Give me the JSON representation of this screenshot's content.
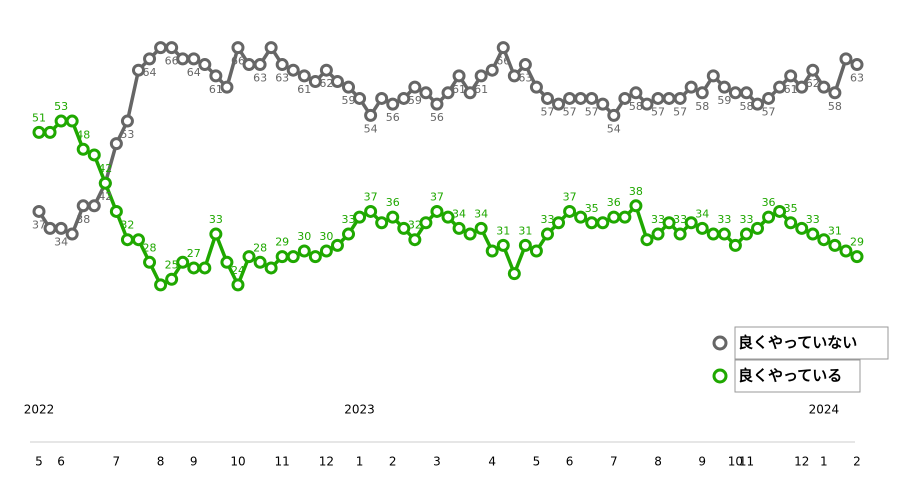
{
  "chart_data": {
    "type": "line",
    "categories": [
      "5",
      null,
      "6",
      null,
      null,
      null,
      null,
      "7",
      null,
      null,
      null,
      "8",
      null,
      null,
      "9",
      null,
      null,
      null,
      "10",
      null,
      null,
      null,
      "11",
      null,
      null,
      null,
      "12",
      null,
      null,
      "1",
      null,
      null,
      "2",
      null,
      null,
      null,
      "3",
      null,
      null,
      null,
      null,
      "4",
      null,
      null,
      null,
      "5",
      null,
      null,
      "6",
      null,
      null,
      null,
      "7",
      null,
      null,
      null,
      "8",
      null,
      null,
      null,
      "9",
      null,
      null,
      "10",
      "11",
      null,
      null,
      null,
      null,
      "12",
      null,
      "1",
      null,
      null,
      "2"
    ],
    "years": [
      "2022",
      null,
      null,
      null,
      null,
      null,
      null,
      null,
      null,
      null,
      null,
      null,
      null,
      null,
      null,
      null,
      null,
      null,
      null,
      null,
      null,
      null,
      null,
      null,
      null,
      null,
      null,
      null,
      null,
      "2023",
      null,
      null,
      null,
      null,
      null,
      null,
      null,
      null,
      null,
      null,
      null,
      null,
      null,
      null,
      null,
      null,
      null,
      null,
      null,
      null,
      null,
      null,
      null,
      null,
      null,
      null,
      null,
      null,
      null,
      null,
      null,
      null,
      null,
      null,
      null,
      null,
      null,
      null,
      null,
      null,
      null,
      "2024",
      null,
      null,
      null
    ],
    "series": [
      {
        "name": "良くやっていない",
        "color": "#666666",
        "values": [
          37,
          34,
          34,
          33,
          38,
          38,
          42,
          49,
          53,
          62,
          64,
          66,
          66,
          64,
          64,
          63,
          61,
          59,
          66,
          63,
          63,
          66,
          63,
          62,
          61,
          60,
          62,
          60,
          59,
          57,
          54,
          57,
          56,
          57,
          59,
          58,
          56,
          58,
          61,
          58,
          61,
          62,
          66,
          61,
          63,
          59,
          57,
          56,
          57,
          57,
          57,
          56,
          54,
          57,
          58,
          56,
          57,
          57,
          57,
          59,
          58,
          61,
          59,
          58,
          58,
          56,
          57,
          59,
          61,
          59,
          62,
          59,
          58,
          64,
          63
        ]
      },
      {
        "name": "良くやっている",
        "color": "#1fa800",
        "values": [
          51,
          51,
          53,
          53,
          48,
          47,
          42,
          37,
          32,
          32,
          28,
          24,
          25,
          28,
          27,
          27,
          33,
          28,
          24,
          29,
          28,
          27,
          29,
          29,
          30,
          29,
          30,
          31,
          33,
          36,
          37,
          35,
          36,
          34,
          32,
          35,
          37,
          36,
          34,
          33,
          34,
          30,
          31,
          26,
          31,
          30,
          33,
          35,
          37,
          36,
          35,
          35,
          36,
          36,
          38,
          32,
          33,
          35,
          33,
          35,
          34,
          33,
          33,
          31,
          33,
          34,
          36,
          37,
          35,
          34,
          33,
          32,
          31,
          30,
          29
        ]
      }
    ],
    "ylim": [
      20,
      70
    ],
    "grid": false
  }
}
